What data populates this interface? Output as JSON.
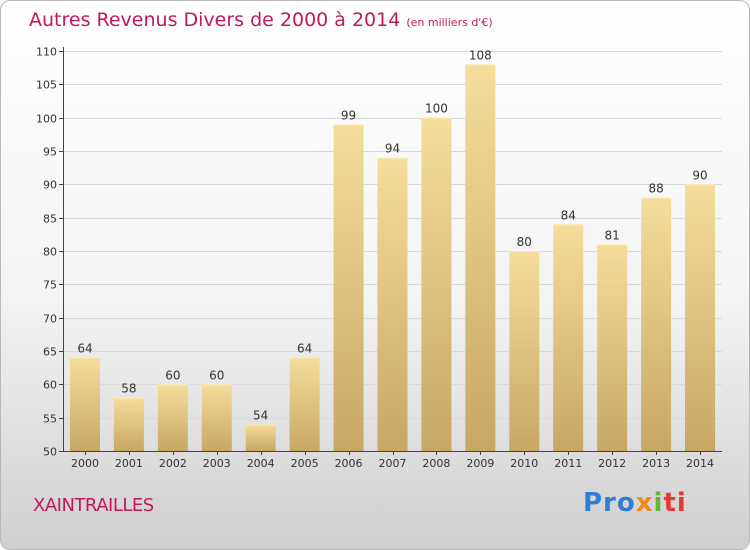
{
  "title": "Autres Revenus Divers de 2000 à 2014",
  "unit_note": "(en milliers d'€)",
  "commune": "XAINTRAILLES",
  "logo": {
    "part1": "Pro",
    "part2": "x",
    "part3": "i",
    "part4": "ti"
  },
  "colors": {
    "title": "#c2185b",
    "bar_light": "#f5dd9a",
    "bar_dark": "#c8a864",
    "axis": "#444444"
  },
  "chart_data": {
    "type": "bar",
    "categories": [
      "2000",
      "2001",
      "2002",
      "2003",
      "2004",
      "2005",
      "2006",
      "2007",
      "2008",
      "2009",
      "2010",
      "2011",
      "2012",
      "2013",
      "2014"
    ],
    "values": [
      64,
      58,
      60,
      60,
      54,
      64,
      99,
      94,
      100,
      108,
      80,
      84,
      81,
      88,
      90
    ],
    "ylim": [
      50,
      110
    ],
    "yticks": [
      50,
      55,
      60,
      65,
      70,
      75,
      80,
      85,
      90,
      95,
      100,
      105,
      110
    ],
    "grid": true,
    "title": "Autres Revenus Divers de 2000 à 2014",
    "xlabel": "",
    "ylabel": ""
  }
}
